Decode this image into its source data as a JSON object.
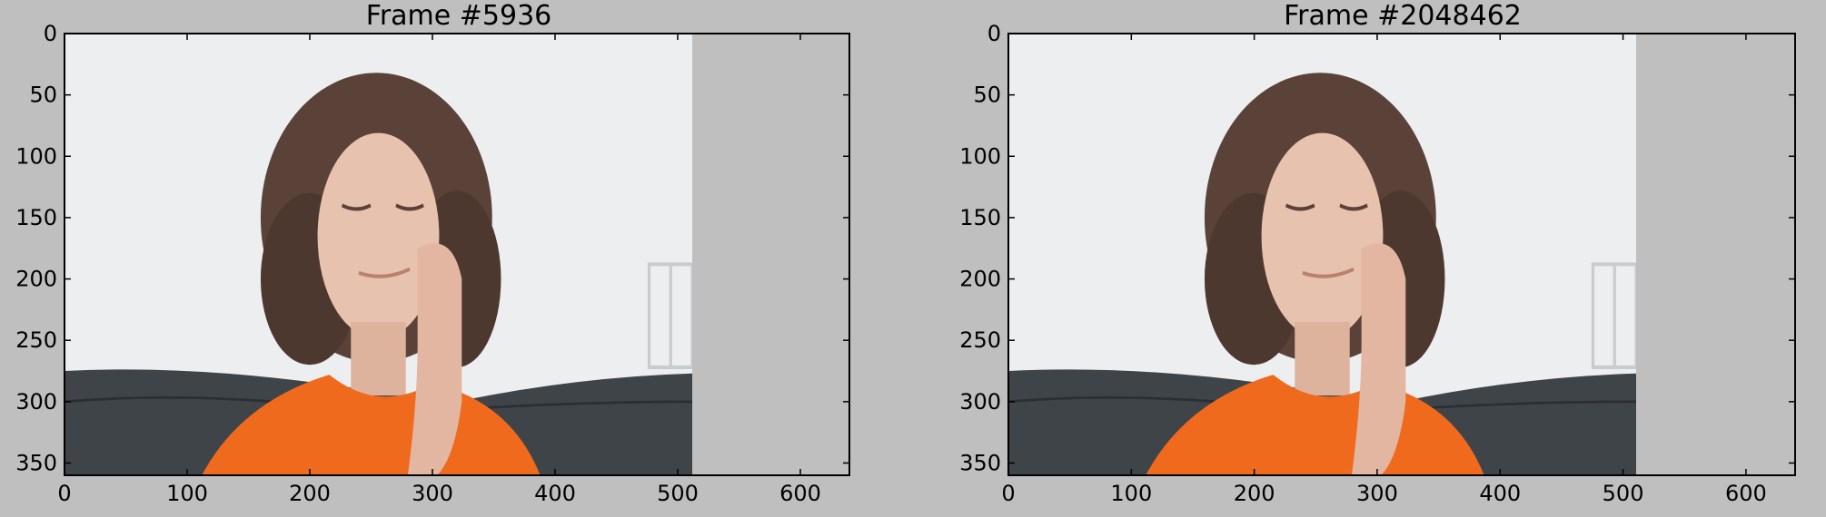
{
  "chart_data": [
    {
      "type": "image",
      "title": "Frame #5936",
      "xlim": [
        0,
        640
      ],
      "ylim": [
        360,
        0
      ],
      "xticks": [
        0,
        100,
        200,
        300,
        400,
        500,
        600
      ],
      "yticks": [
        0,
        50,
        100,
        150,
        200,
        250,
        300,
        350
      ],
      "image_description_icon": "person-face-icon"
    },
    {
      "type": "image",
      "title": "Frame #2048462",
      "xlim": [
        0,
        640
      ],
      "ylim": [
        360,
        0
      ],
      "xticks": [
        0,
        100,
        200,
        300,
        400,
        500,
        600
      ],
      "yticks": [
        0,
        50,
        100,
        150,
        200,
        250,
        300,
        350
      ],
      "image_description_icon": "person-face-icon"
    }
  ],
  "colors": {
    "figure_background": "#bfbfbf",
    "wall": "#eceef0",
    "couch": "#3f4449",
    "shirt": "#f06a1e",
    "skin": "#e7c2ae",
    "hair": "#5a4238"
  }
}
